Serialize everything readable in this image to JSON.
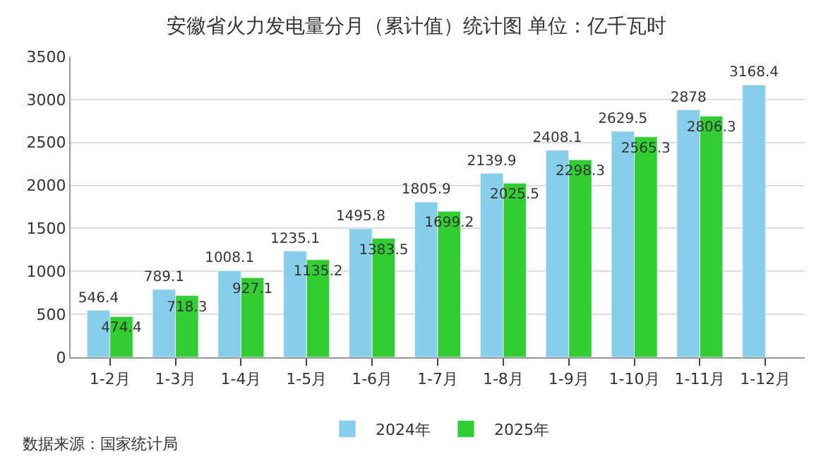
{
  "chart_data": {
    "type": "bar",
    "title": "安徽省火力发电量分月（累计值）统计图 单位：亿千瓦时",
    "categories": [
      "1-2月",
      "1-3月",
      "1-4月",
      "1-5月",
      "1-6月",
      "1-7月",
      "1-8月",
      "1-9月",
      "1-10月",
      "1-11月",
      "1-12月"
    ],
    "series": [
      {
        "name": "2024年",
        "color": "#87ceeb",
        "values": [
          546.4,
          789.1,
          1008.1,
          1235.1,
          1495.8,
          1805.9,
          2139.9,
          2408.1,
          2629.5,
          2878,
          3168.4
        ]
      },
      {
        "name": "2025年",
        "color": "#32cd32",
        "values": [
          474.4,
          718.3,
          927.1,
          1135.2,
          1383.5,
          1699.2,
          2025.5,
          2298.3,
          2565.3,
          2806.3,
          null
        ]
      }
    ],
    "ylim": [
      0,
      3500
    ],
    "yticks": [
      0,
      500,
      1000,
      1500,
      2000,
      2500,
      3000,
      3500
    ],
    "grid": "y",
    "legend": "bottom",
    "data_labels": true,
    "annotations": [
      "数据来源：国家统计局"
    ]
  }
}
